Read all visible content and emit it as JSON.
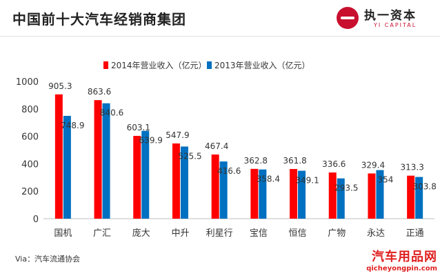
{
  "header": {
    "title": "中国前十大汽车经销商集团",
    "logo_cn": "执一资本",
    "logo_en": "YI CAPITAL"
  },
  "source": "Via：汽车流通协会",
  "watermark": {
    "cn": "汽车用品网",
    "en": "qicheyongpin.com"
  },
  "colors": {
    "series_2014": "#ff0000",
    "series_2013": "#0070c0",
    "brand": "#c8102e"
  },
  "chart_data": {
    "type": "bar",
    "title": "",
    "xlabel": "",
    "ylabel": "",
    "categories": [
      "国机",
      "广汇",
      "庞大",
      "中升",
      "利星行",
      "宝信",
      "恒信",
      "广物",
      "永达",
      "正通"
    ],
    "series": [
      {
        "name": "2014年营业收入（亿元）",
        "values": [
          905.3,
          863.6,
          603.1,
          547.9,
          467.4,
          362.8,
          361.8,
          336.6,
          329.4,
          313.3
        ]
      },
      {
        "name": "2013年营业收入（亿元）",
        "values": [
          748.9,
          840.6,
          639.9,
          525.5,
          416.6,
          358.4,
          349.1,
          293.5,
          354.0,
          303.8
        ]
      }
    ],
    "ylim": [
      0,
      1000
    ],
    "yticks": [
      0,
      200,
      400,
      600,
      800,
      1000
    ],
    "legend": "top-center",
    "grid": false
  }
}
